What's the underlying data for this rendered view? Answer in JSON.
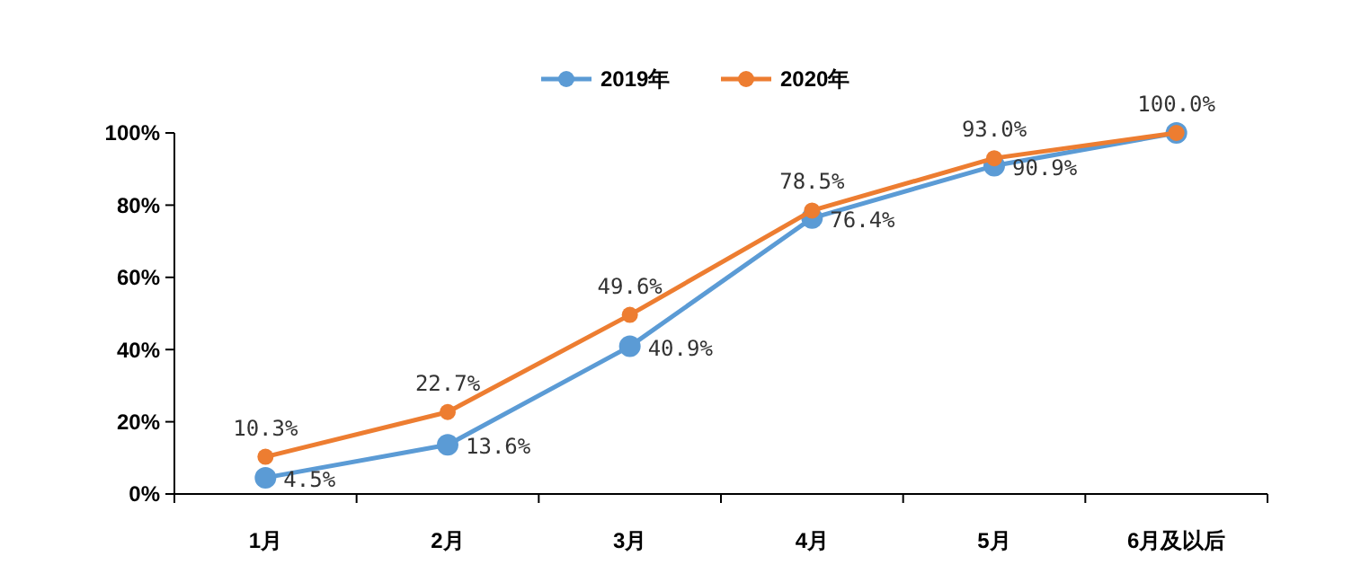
{
  "chart_data": {
    "type": "line",
    "categories": [
      "1月",
      "2月",
      "3月",
      "4月",
      "5月",
      "6月及以后"
    ],
    "series": [
      {
        "name": "2019年",
        "color": "#5b9bd5",
        "values": [
          4.5,
          13.6,
          40.9,
          76.4,
          90.9,
          100
        ],
        "value_labels": [
          "4.5%",
          "13.6%",
          "40.9%",
          "76.4%",
          "90.9%",
          null
        ]
      },
      {
        "name": "2020年",
        "color": "#ed7d31",
        "values": [
          10.3,
          22.7,
          49.6,
          78.5,
          93.0,
          100
        ],
        "value_labels": [
          "10.3%",
          "22.7%",
          "49.6%",
          "78.5%",
          "93.0%",
          "100.0%"
        ]
      }
    ],
    "ylim": [
      0,
      100
    ],
    "yticks": [
      {
        "value": 0,
        "label": "0%"
      },
      {
        "value": 20,
        "label": "20%"
      },
      {
        "value": 40,
        "label": "40%"
      },
      {
        "value": 60,
        "label": "60%"
      },
      {
        "value": 80,
        "label": "80%"
      },
      {
        "value": 100,
        "label": "100%"
      }
    ],
    "grid": false,
    "legend": "top",
    "marker": "circle",
    "line_style": "solid"
  }
}
